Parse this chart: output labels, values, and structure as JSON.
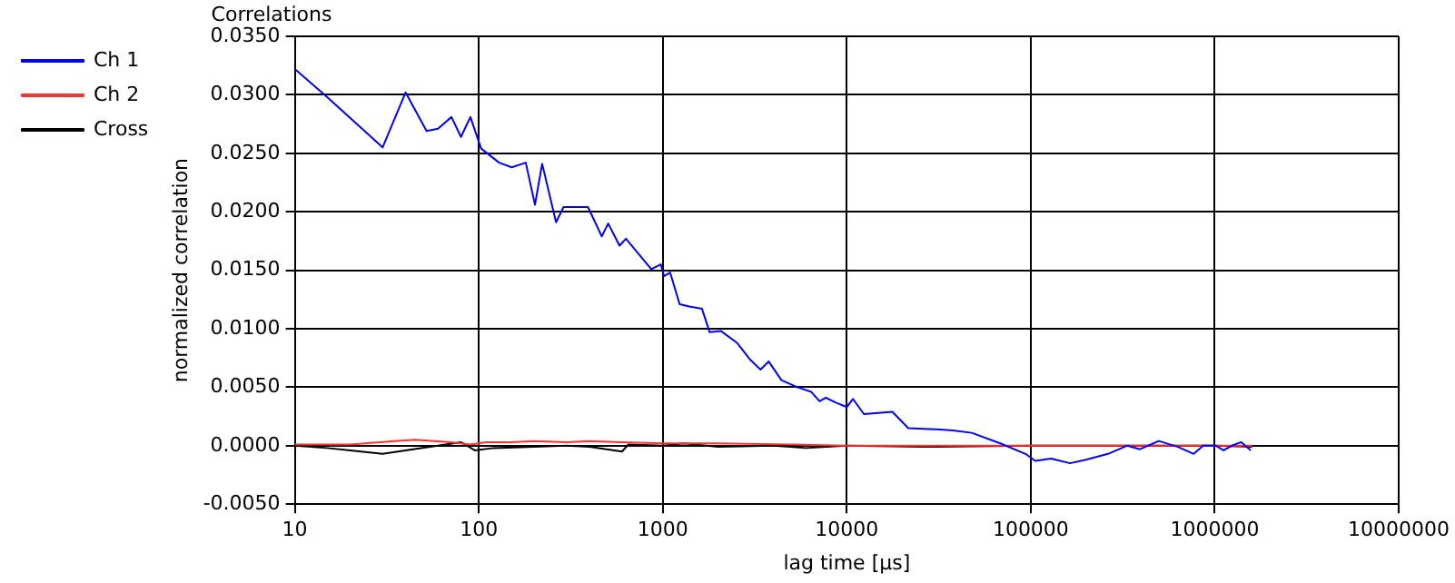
{
  "chart_data": {
    "type": "line",
    "title": "Correlations",
    "xlabel": "lag time [µs]",
    "ylabel": "normalized correlation",
    "log": "x",
    "xlim": [
      10,
      10000000
    ],
    "xticks": [
      10,
      100,
      1000,
      10000,
      100000,
      1000000,
      10000000
    ],
    "ylim": [
      -0.005,
      0.035
    ],
    "yticks": [
      {
        "value": -0.005,
        "label": "-0.0050"
      },
      {
        "value": 0,
        "label": "0.0000"
      },
      {
        "value": 0.005,
        "label": "0.0050"
      },
      {
        "value": 0.01,
        "label": "0.0100"
      },
      {
        "value": 0.015,
        "label": "0.0150"
      },
      {
        "value": 0.02,
        "label": "0.0200"
      },
      {
        "value": 0.025,
        "label": "0.0250"
      },
      {
        "value": 0.03,
        "label": "0.0300"
      },
      {
        "value": 0.035,
        "label": "0.0350"
      }
    ],
    "grid": true,
    "legend": "top left",
    "marker": "none",
    "line_style": "solid",
    "series": [
      {
        "name": "Ch 1",
        "color": "#0000ff",
        "x": [
          10,
          15,
          30,
          40,
          52,
          60,
          71,
          80,
          90,
          103,
          129,
          151,
          180,
          202,
          221,
          263,
          289,
          392,
          466,
          505,
          582,
          631,
          739,
          866,
          976,
          1015,
          1097,
          1235,
          1393,
          1634,
          1798,
          2075,
          2530,
          2967,
          3400,
          3765,
          4415,
          5383,
          6412,
          7117,
          7700,
          8670,
          10000,
          10800,
          12400,
          17700,
          21600,
          30800,
          37700,
          47800,
          68300,
          93700,
          105700,
          129000,
          163600,
          199600,
          263000,
          334000,
          392000,
          497000,
          631000,
          769000,
          866000,
          1016000,
          1117000,
          1238000,
          1394000,
          1570000
        ],
        "values": [
          0.0322,
          0.0298,
          0.0255,
          0.0302,
          0.0269,
          0.0271,
          0.0281,
          0.0264,
          0.0281,
          0.0254,
          0.0242,
          0.0238,
          0.0242,
          0.0206,
          0.0241,
          0.0191,
          0.0204,
          0.0204,
          0.0179,
          0.019,
          0.0171,
          0.0177,
          0.0164,
          0.0151,
          0.0155,
          0.0145,
          0.0148,
          0.0121,
          0.0119,
          0.0117,
          0.0097,
          0.0098,
          0.0088,
          0.0074,
          0.0065,
          0.0072,
          0.0056,
          0.005,
          0.0046,
          0.0038,
          0.0041,
          0.0037,
          0.0033,
          0.004,
          0.0027,
          0.0029,
          0.0015,
          0.0014,
          0.0013,
          0.0011,
          0.0002,
          -0.0007,
          -0.0013,
          -0.0011,
          -0.0015,
          -0.0012,
          -0.0007,
          0,
          -0.0003,
          0.0004,
          -0.0001,
          -0.0007,
          0,
          0,
          -0.0004,
          0,
          0.0003,
          -0.0004
        ]
      },
      {
        "name": "Ch 2",
        "color": "#ff3030",
        "x": [
          10,
          20,
          35,
          45,
          70,
          80,
          90,
          110,
          150,
          200,
          300,
          400,
          600,
          1000,
          2000,
          5000,
          10000,
          100000,
          1000000,
          1600000
        ],
        "values": [
          0.0001,
          0.0001,
          0.0004,
          0.0005,
          0.0003,
          0.0002,
          0.0001,
          0.0003,
          0.0003,
          0.0004,
          0.0003,
          0.0004,
          0.0003,
          0.0002,
          0.0002,
          0.0001,
          0,
          0,
          0,
          0
        ]
      },
      {
        "name": "Cross",
        "color": "#000000",
        "x": [
          10,
          15,
          20,
          30,
          40,
          60,
          80,
          95,
          120,
          200,
          300,
          400,
          600,
          650,
          1000,
          1300,
          2000,
          4000,
          6000,
          10000,
          30000,
          100000,
          1000000,
          1600000
        ],
        "values": [
          0,
          -0.0002,
          -0.0004,
          -0.0007,
          -0.0004,
          0,
          0.0003,
          -0.0004,
          -0.0002,
          -0.0001,
          0,
          -0.0001,
          -0.0005,
          0.0001,
          0,
          0.0002,
          -0.0001,
          0,
          -0.0002,
          0,
          -0.0001,
          0,
          0,
          -0.0001
        ]
      }
    ]
  }
}
